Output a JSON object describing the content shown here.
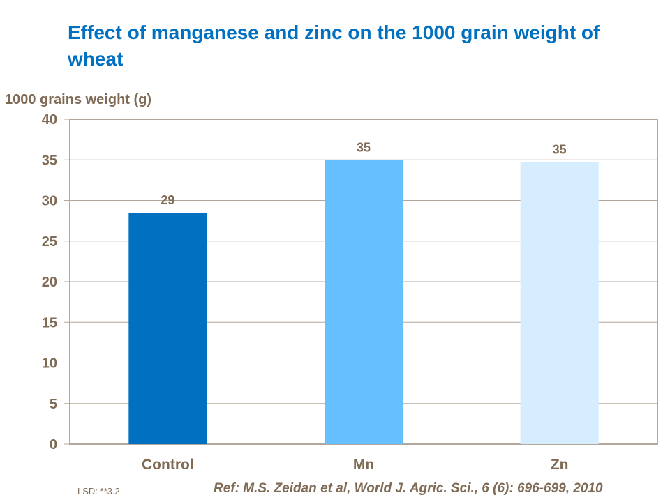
{
  "title": "Effect of manganese and zinc on the 1000 grain weight of wheat",
  "footer": {
    "lsd": "LSD: **3.2",
    "ref": "Ref: M.S. Zeidan et al, World J. Agric. Sci., 6 (6): 696-699, 2010"
  },
  "chart_data": {
    "type": "bar",
    "title": "Effect of manganese and zinc on the 1000 grain weight of wheat",
    "ylabel": "1000 grains weight (g)",
    "xlabel": "",
    "categories": [
      "Control",
      "Mn",
      "Zn"
    ],
    "values": [
      28.5,
      35.0,
      34.7
    ],
    "data_labels": [
      "29",
      "35",
      "35"
    ],
    "colors": [
      "#0070C0",
      "#66BFFF",
      "#D6ECFF"
    ],
    "ylim": [
      0,
      40
    ],
    "yticks": [
      0,
      5,
      10,
      15,
      20,
      25,
      30,
      35,
      40
    ],
    "grid": true,
    "text_color": "#7F6A55",
    "grid_color": "#B4A89C"
  }
}
